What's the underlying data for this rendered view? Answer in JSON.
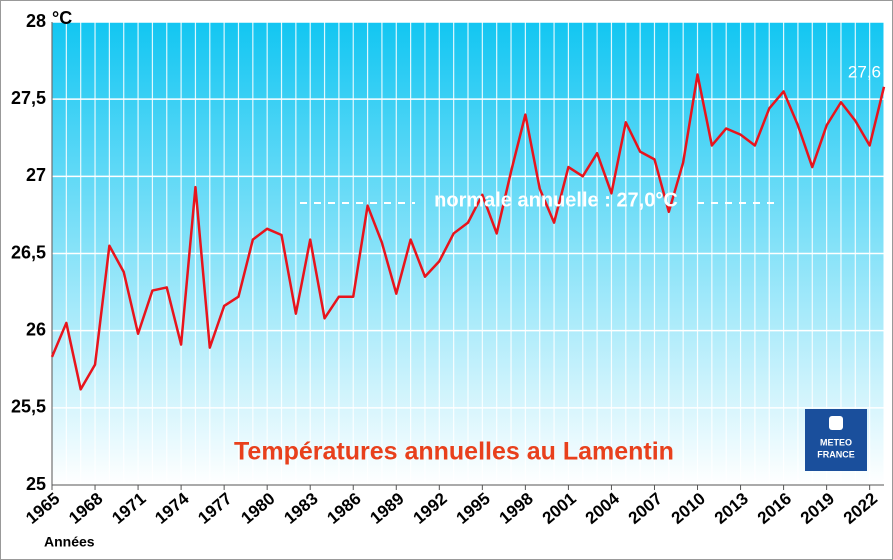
{
  "chart_data": {
    "type": "line",
    "title": "Températures annuelles au Lamentin",
    "y_unit": "°C",
    "x_label": "Années",
    "annotation": "normale annuelle : 27,0°C",
    "logo": [
      "METEO",
      "FRANCE"
    ],
    "x": [
      1965,
      1966,
      1967,
      1968,
      1969,
      1970,
      1971,
      1972,
      1973,
      1974,
      1975,
      1976,
      1977,
      1978,
      1979,
      1980,
      1981,
      1982,
      1983,
      1984,
      1985,
      1986,
      1987,
      1988,
      1989,
      1990,
      1991,
      1992,
      1993,
      1994,
      1995,
      1996,
      1997,
      1998,
      1999,
      2000,
      2001,
      2002,
      2003,
      2004,
      2005,
      2006,
      2007,
      2008,
      2009,
      2010,
      2011,
      2012,
      2013,
      2014,
      2015,
      2016,
      2017,
      2018,
      2019,
      2020,
      2021,
      2022,
      2023
    ],
    "series": [
      {
        "name": "Température annuelle",
        "color": "#e8141c",
        "values": [
          25.83,
          26.05,
          25.62,
          25.78,
          26.55,
          26.38,
          25.98,
          26.26,
          26.28,
          25.91,
          26.93,
          25.89,
          26.16,
          26.22,
          26.59,
          26.66,
          26.62,
          26.11,
          26.59,
          26.08,
          26.22,
          26.22,
          26.81,
          26.57,
          26.24,
          26.59,
          26.35,
          26.45,
          26.63,
          26.7,
          26.88,
          26.63,
          27.03,
          27.4,
          26.92,
          26.7,
          27.06,
          27.0,
          27.15,
          26.89,
          27.35,
          27.16,
          27.11,
          26.77,
          27.09,
          27.66,
          27.2,
          27.31,
          27.27,
          27.2,
          27.44,
          27.55,
          27.33,
          27.06,
          27.33,
          27.48,
          27.36,
          27.2,
          27.58
        ],
        "value_labels": [
          null,
          null,
          null,
          null,
          null,
          null,
          null,
          null,
          null,
          null,
          null,
          null,
          null,
          null,
          null,
          null,
          null,
          null,
          null,
          null,
          null,
          null,
          null,
          null,
          null,
          null,
          null,
          null,
          null,
          null,
          null,
          null,
          null,
          null,
          null,
          null,
          null,
          null,
          null,
          null,
          null,
          null,
          null,
          null,
          null,
          null,
          null,
          null,
          null,
          null,
          null,
          null,
          null,
          null,
          null,
          null,
          null,
          null,
          "27,6"
        ]
      }
    ],
    "xlim": [
      1965,
      2023
    ],
    "xticks": [
      1965,
      1968,
      1971,
      1974,
      1977,
      1980,
      1983,
      1986,
      1989,
      1992,
      1995,
      1998,
      2001,
      2004,
      2007,
      2010,
      2013,
      2016,
      2019,
      2022
    ],
    "ylim": [
      25,
      28
    ],
    "yticks": [
      25,
      {
        "value": 25.5,
        "label": "25,5"
      },
      26,
      {
        "value": 26.5,
        "label": "26,5"
      },
      27,
      {
        "value": 27.5,
        "label": "27,5"
      },
      28
    ],
    "grid": true
  }
}
